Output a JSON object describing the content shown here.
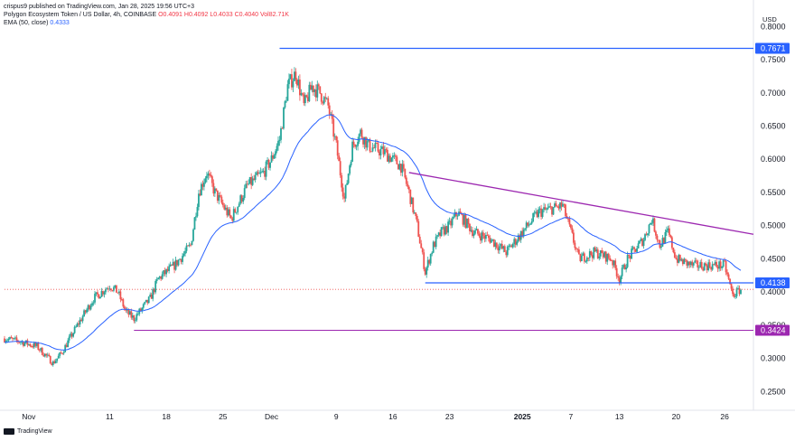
{
  "header": {
    "publisher": "crispus9 published on TradingView.com, Jan 28, 2025 19:56 UTC+3",
    "symbol": "Polygon Ecosystem Token / US Dollar, 4h, COINBASE",
    "ohlc": [
      "O0.4091",
      "H0.4092",
      "L0.4033",
      "C0.4040",
      "Vol82.71K"
    ],
    "ema_label": "EMA (50, close)",
    "ema_value": "0.4333"
  },
  "currency": "USD",
  "footer": {
    "brand": "TradingView"
  },
  "colors": {
    "up": "#26a69a",
    "down": "#ef5350",
    "ema": "#2962ff",
    "blue_line": "#2962ff",
    "purple_line": "#9c27b0",
    "price_dotted": "#ef5350"
  },
  "chart_data": {
    "type": "candlestick",
    "x_tick_labels": [
      "Nov",
      "11",
      "18",
      "25",
      "Dec",
      "9",
      "16",
      "23",
      "2025",
      "7",
      "13",
      "20",
      "26"
    ],
    "y_tick_labels": [
      "0.2500",
      "0.3000",
      "0.3500",
      "0.4000",
      "0.4500",
      "0.5000",
      "0.5500",
      "0.6000",
      "0.6500",
      "0.7000",
      "0.7500",
      "0.8000"
    ],
    "ylim": [
      0.23,
      0.81
    ],
    "last_close": 0.404,
    "levels": [
      {
        "label": "0.7671",
        "value": 0.7671,
        "color": "#2962ff"
      },
      {
        "label": "0.4138",
        "value": 0.4138,
        "color": "#2962ff"
      },
      {
        "label": "0.3424",
        "value": 0.3424,
        "color": "#9c27b0"
      }
    ],
    "price_path": [
      [
        "Oct 29",
        0.33
      ],
      [
        "Oct 31",
        0.325
      ],
      [
        "Nov 2",
        0.318
      ],
      [
        "Nov 4",
        0.293
      ],
      [
        "Nov 5",
        0.307
      ],
      [
        "Nov 7",
        0.35
      ],
      [
        "Nov 9",
        0.39
      ],
      [
        "Nov 11",
        0.41
      ],
      [
        "Nov 12",
        0.4
      ],
      [
        "Nov 13",
        0.37
      ],
      [
        "Nov 14",
        0.36
      ],
      [
        "Nov 16",
        0.39
      ],
      [
        "Nov 17",
        0.42
      ],
      [
        "Nov 18",
        0.43
      ],
      [
        "Nov 19",
        0.44
      ],
      [
        "Nov 21",
        0.47
      ],
      [
        "Nov 22",
        0.55
      ],
      [
        "Nov 23",
        0.58
      ],
      [
        "Nov 24",
        0.55
      ],
      [
        "Nov 25",
        0.53
      ],
      [
        "Nov 26",
        0.51
      ],
      [
        "Nov 28",
        0.56
      ],
      [
        "Nov 30",
        0.58
      ],
      [
        "Dec 1",
        0.6
      ],
      [
        "Dec 2",
        0.63
      ],
      [
        "Dec 3",
        0.71
      ],
      [
        "Dec 4",
        0.73
      ],
      [
        "Dec 5",
        0.68
      ],
      [
        "Dec 6",
        0.71
      ],
      [
        "Dec 7",
        0.7
      ],
      [
        "Dec 8",
        0.68
      ],
      [
        "Dec 9",
        0.62
      ],
      [
        "Dec 10",
        0.54
      ],
      [
        "Dec 11",
        0.62
      ],
      [
        "Dec 12",
        0.64
      ],
      [
        "Dec 13",
        0.62
      ],
      [
        "Dec 15",
        0.61
      ],
      [
        "Dec 16",
        0.6
      ],
      [
        "Dec 17",
        0.59
      ],
      [
        "Dec 18",
        0.55
      ],
      [
        "Dec 19",
        0.5
      ],
      [
        "Dec 20",
        0.43
      ],
      [
        "Dec 21",
        0.47
      ],
      [
        "Dec 22",
        0.49
      ],
      [
        "Dec 23",
        0.5
      ],
      [
        "Dec 24",
        0.52
      ],
      [
        "Dec 26",
        0.49
      ],
      [
        "Dec 28",
        0.48
      ],
      [
        "Dec 30",
        0.46
      ],
      [
        "Jan 1",
        0.49
      ],
      [
        "Jan 3",
        0.52
      ],
      [
        "Jan 6",
        0.53
      ],
      [
        "Jan 7",
        0.49
      ],
      [
        "Jan 8",
        0.45
      ],
      [
        "Jan 10",
        0.46
      ],
      [
        "Jan 12",
        0.45
      ],
      [
        "Jan 13",
        0.42
      ],
      [
        "Jan 14",
        0.45
      ],
      [
        "Jan 16",
        0.48
      ],
      [
        "Jan 17",
        0.51
      ],
      [
        "Jan 18",
        0.47
      ],
      [
        "Jan 19",
        0.49
      ],
      [
        "Jan 20",
        0.45
      ],
      [
        "Jan 22",
        0.44
      ],
      [
        "Jan 24",
        0.44
      ],
      [
        "Jan 26",
        0.44
      ],
      [
        "Jan 27",
        0.395
      ],
      [
        "Jan 28",
        0.404
      ]
    ]
  }
}
